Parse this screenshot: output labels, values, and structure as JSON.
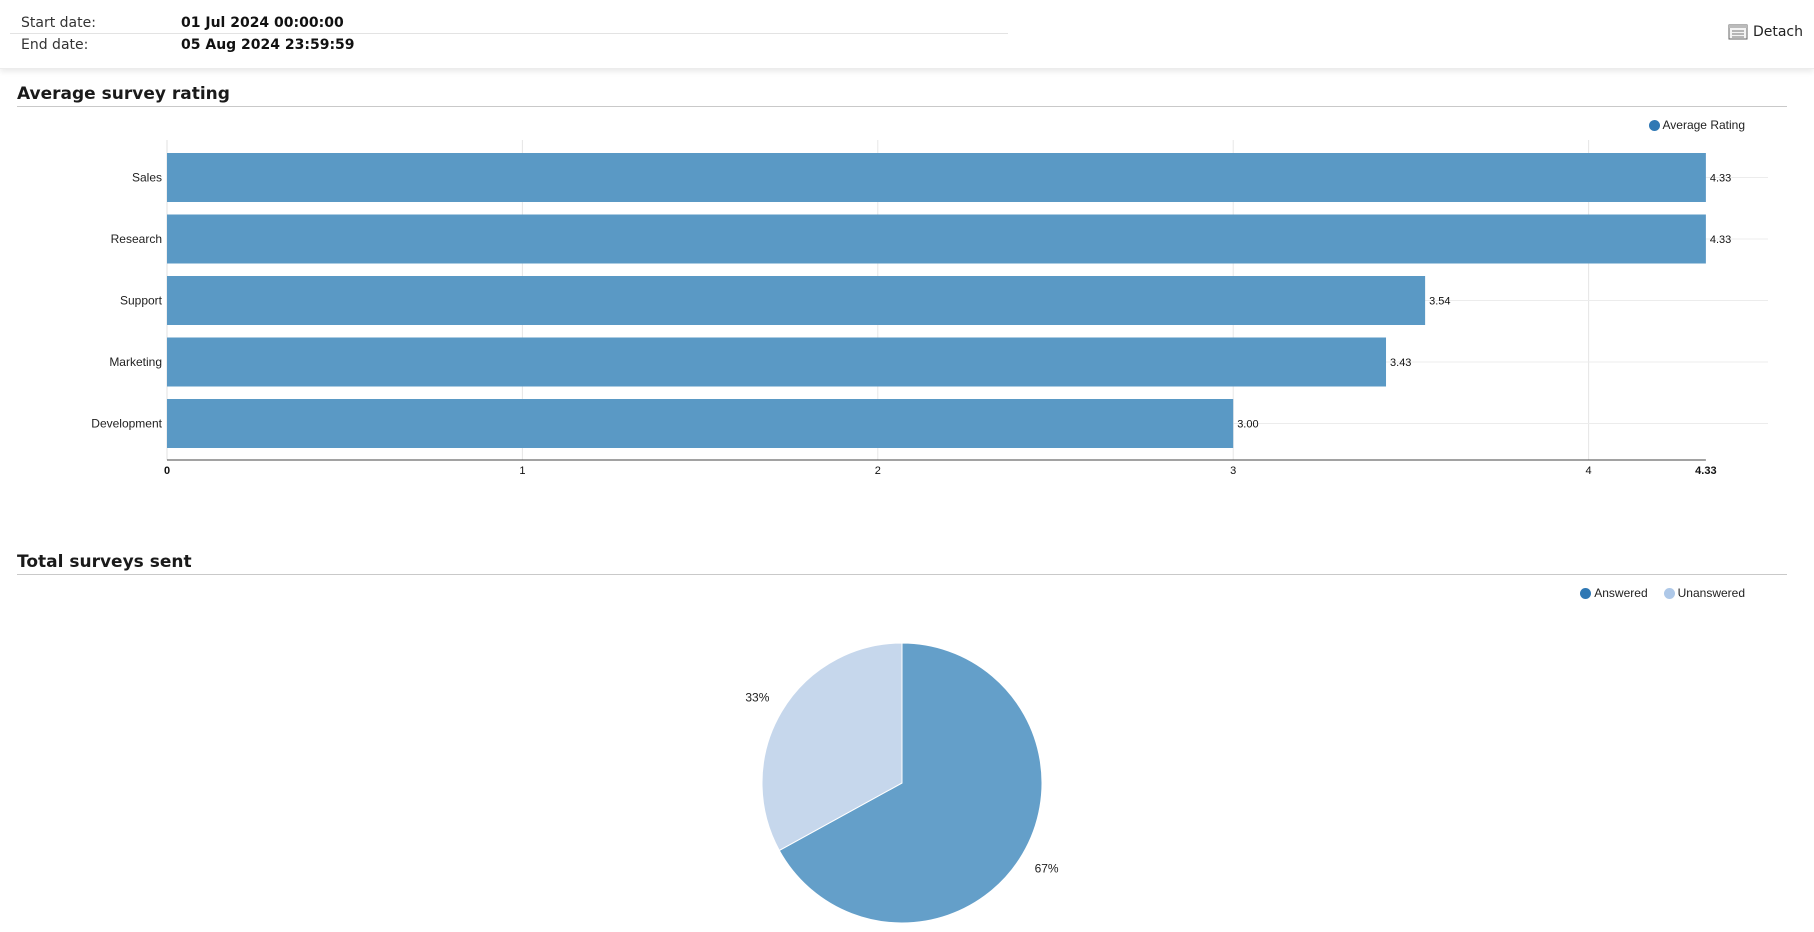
{
  "filters": {
    "start_label": "Start date:",
    "start_value": "01 Jul 2024 00:00:00",
    "end_label": "End date:",
    "end_value": "05 Aug 2024 23:59:59"
  },
  "toolbar": {
    "detach_label": "Detach",
    "detach_icon": "detach-icon"
  },
  "sections": {
    "rating_title": "Average survey rating",
    "total_title": "Total surveys sent"
  },
  "colors": {
    "bar": "#5a99c5",
    "answered": "#649fc9",
    "unanswered": "#c6d7ec",
    "answered_legend": "#2f78b4",
    "unanswered_legend": "#aec8e8"
  },
  "chart_data": [
    {
      "type": "bar",
      "orientation": "horizontal",
      "categories": [
        "Sales",
        "Research",
        "Support",
        "Marketing",
        "Development"
      ],
      "series": [
        {
          "name": "Average Rating",
          "values": [
            4.33,
            4.33,
            3.54,
            3.43,
            3.0
          ]
        }
      ],
      "data_labels": [
        "4.33",
        "4.33",
        "3.54",
        "3.43",
        "3.00"
      ],
      "xlim": [
        0,
        4.5
      ],
      "x_ticks": [
        "0",
        "1",
        "2",
        "3",
        "4"
      ],
      "x_max_label": "4.33",
      "grid": true,
      "legend": "top-right"
    },
    {
      "type": "pie",
      "categories": [
        "Answered",
        "Unanswered"
      ],
      "values": [
        67,
        33
      ],
      "labels": [
        "67%",
        "33%"
      ],
      "legend": "top-right"
    }
  ]
}
